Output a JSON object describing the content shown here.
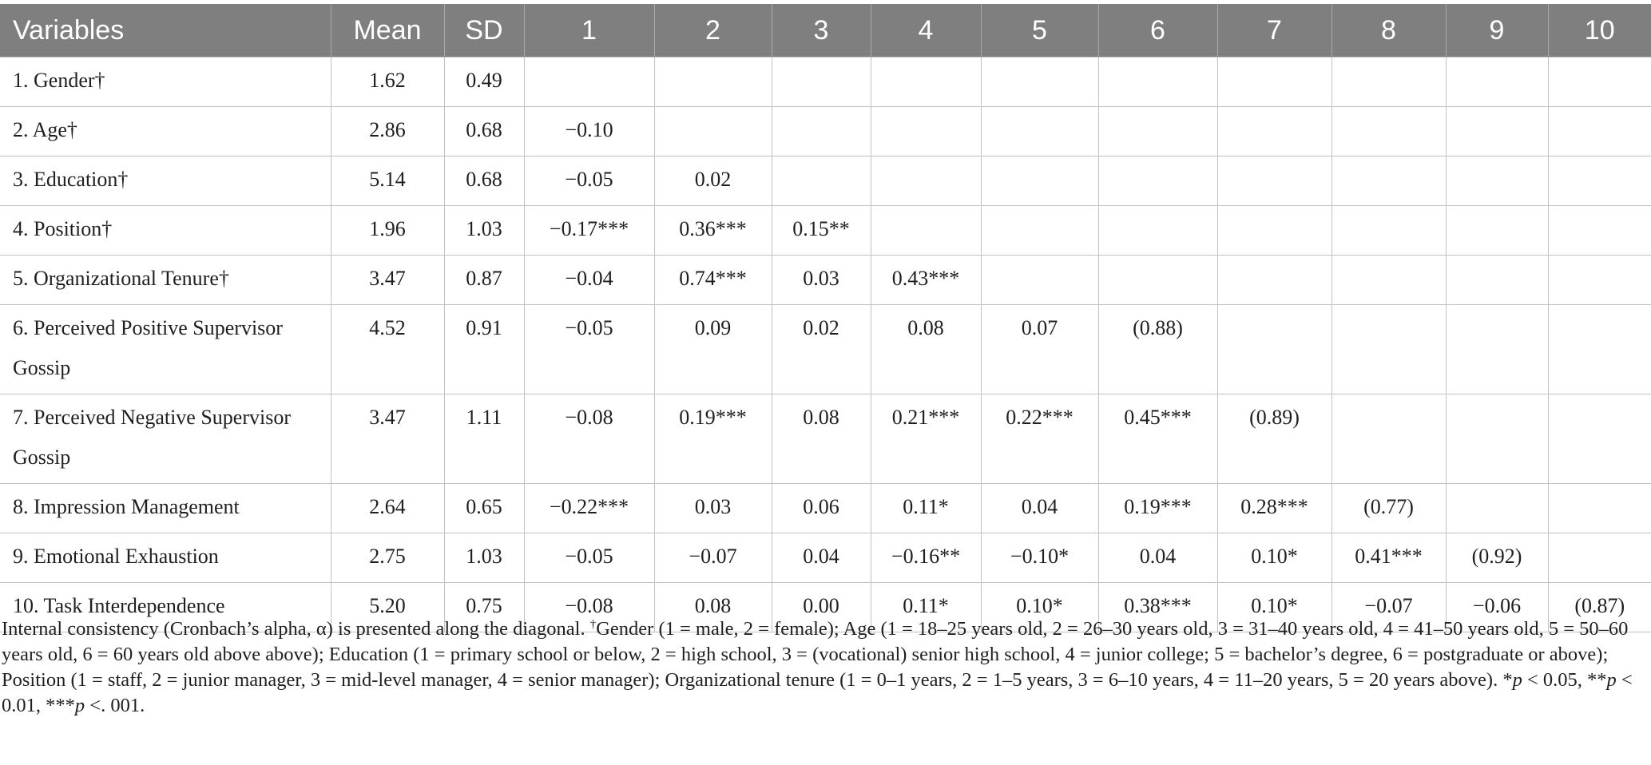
{
  "table": {
    "headers": [
      "Variables",
      "Mean",
      "SD",
      "1",
      "2",
      "3",
      "4",
      "5",
      "6",
      "7",
      "8",
      "9",
      "10"
    ],
    "rows": [
      [
        "1. Gender†",
        "1.62",
        "0.49",
        "",
        "",
        "",
        "",
        "",
        "",
        "",
        "",
        "",
        ""
      ],
      [
        "2. Age†",
        "2.86",
        "0.68",
        "−0.10",
        "",
        "",
        "",
        "",
        "",
        "",
        "",
        "",
        ""
      ],
      [
        "3. Education†",
        "5.14",
        "0.68",
        "−0.05",
        "0.02",
        "",
        "",
        "",
        "",
        "",
        "",
        "",
        ""
      ],
      [
        "4. Position†",
        "1.96",
        "1.03",
        "−0.17***",
        "0.36***",
        "0.15**",
        "",
        "",
        "",
        "",
        "",
        "",
        ""
      ],
      [
        "5. Organizational Tenure†",
        "3.47",
        "0.87",
        "−0.04",
        "0.74***",
        "0.03",
        "0.43***",
        "",
        "",
        "",
        "",
        "",
        ""
      ],
      [
        "6. Perceived Positive Supervisor Gossip",
        "4.52",
        "0.91",
        "−0.05",
        "0.09",
        "0.02",
        "0.08",
        "0.07",
        "(0.88)",
        "",
        "",
        "",
        ""
      ],
      [
        "7. Perceived Negative Supervisor Gossip",
        "3.47",
        "1.11",
        "−0.08",
        "0.19***",
        "0.08",
        "0.21***",
        "0.22***",
        "0.45***",
        "(0.89)",
        "",
        "",
        ""
      ],
      [
        "8. Impression Management",
        "2.64",
        "0.65",
        "−0.22***",
        "0.03",
        "0.06",
        "0.11*",
        "0.04",
        "0.19***",
        "0.28***",
        "(0.77)",
        "",
        ""
      ],
      [
        "9. Emotional Exhaustion",
        "2.75",
        "1.03",
        "−0.05",
        "−0.07",
        "0.04",
        "−0.16**",
        "−0.10*",
        "0.04",
        "0.10*",
        "0.41***",
        "(0.92)",
        ""
      ],
      [
        "10. Task Interdependence",
        "5.20",
        "0.75",
        "−0.08",
        "0.08",
        "0.00",
        "0.11*",
        "0.10*",
        "0.38***",
        "0.10*",
        "−0.07",
        "−0.06",
        "(0.87)"
      ]
    ]
  },
  "note": {
    "part1": "Internal consistency (Cronbach’s alpha, α) is presented along the diagonal. ",
    "dagger": "†",
    "part2": "Gender (1 = male, 2 = female); Age (1 = 18–25 years old, 2 = 26–30 years old, 3 = 31–40 years old, 4 = 41–50 years old, 5 = 50–60 years old, 6 = 60 years old above above); Education (1 = primary school or below, 2 = high school, 3 = (vocational) senior high school, 4 = junior college; 5 = bachelor’s degree, 6 = postgraduate or above); Position (1 = staff, 2 = junior manager, 3 = mid-level manager, 4 = senior manager); Organizational tenure (1 = 0–1 years, 2 = 1–5 years, 3 = 6–10 years, 4 = 11–20 years, 5 = 20 years above). ",
    "sig1_star": "*",
    "sig1_p": "p",
    "sig1_rest": " < 0.05, ",
    "sig2_star": "**",
    "sig2_p": "p",
    "sig2_rest": " < 0.01, ",
    "sig3_star": "***",
    "sig3_p": "p",
    "sig3_rest": " <. 001."
  }
}
